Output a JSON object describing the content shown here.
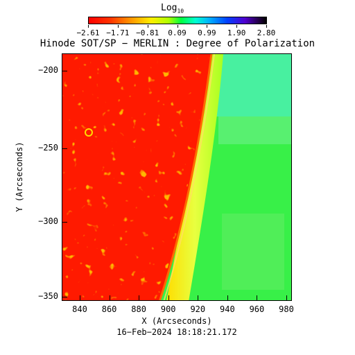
{
  "colorbar": {
    "title_main": "Log",
    "title_sub": "10",
    "tick_labels": [
      "−2.61",
      "−1.71",
      "−0.81",
      "0.09",
      "0.99",
      "1.90",
      "2.80"
    ]
  },
  "title": "Hinode SOT/SP − MERLIN : Degree of Polarization",
  "axes": {
    "xlabel": "X (Arcseconds)",
    "ylabel": "Y (Arcseconds)",
    "xticks": [
      "840",
      "860",
      "880",
      "900",
      "920",
      "940",
      "960",
      "980"
    ],
    "yticks": [
      "−200",
      "−250",
      "−300",
      "−350"
    ]
  },
  "timestamp": "16−Feb−2024 18:18:21.172"
}
